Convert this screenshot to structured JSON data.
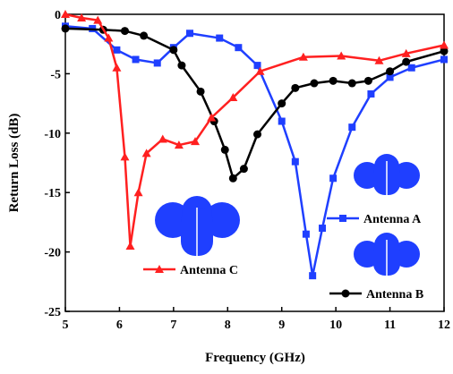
{
  "chart_data": {
    "type": "line",
    "x_label": "Frequency (GHz)",
    "y_label": "Return Loss (dB)",
    "xlim": [
      5,
      12
    ],
    "ylim": [
      -25,
      0
    ],
    "xticks": [
      5,
      6,
      7,
      8,
      9,
      10,
      11,
      12
    ],
    "yticks": [
      -25,
      -20,
      -15,
      -10,
      -5,
      0
    ],
    "series": [
      {
        "name": "Antenna A",
        "color": "#1f3fff",
        "marker": "square",
        "x": [
          5,
          5.5,
          5.95,
          6.3,
          6.7,
          7.0,
          7.3,
          7.85,
          8.2,
          8.55,
          9.0,
          9.25,
          9.45,
          9.57,
          9.75,
          9.95,
          10.3,
          10.65,
          11.0,
          11.4,
          12
        ],
        "values": [
          -1,
          -1.2,
          -3,
          -3.8,
          -4.1,
          -2.8,
          -1.6,
          -2,
          -2.8,
          -4.3,
          -9,
          -12.4,
          -18.5,
          -22,
          -18,
          -13.8,
          -9.5,
          -6.7,
          -5.3,
          -4.5,
          -3.8
        ]
      },
      {
        "name": "Antenna B",
        "color": "#000000",
        "marker": "circle",
        "x": [
          5,
          5.7,
          6.1,
          6.45,
          7.0,
          7.15,
          7.5,
          7.75,
          7.95,
          8.1,
          8.3,
          8.55,
          9.0,
          9.25,
          9.6,
          9.95,
          10.3,
          10.6,
          11.0,
          11.3,
          12
        ],
        "values": [
          -1.2,
          -1.3,
          -1.4,
          -1.8,
          -3,
          -4.3,
          -6.5,
          -9,
          -11.4,
          -13.8,
          -13,
          -10.1,
          -7.5,
          -6.2,
          -5.8,
          -5.6,
          -5.8,
          -5.6,
          -4.8,
          -4,
          -3.1
        ]
      },
      {
        "name": "Antenna C",
        "color": "#ff2020",
        "marker": "triangle",
        "x": [
          5,
          5.3,
          5.6,
          5.8,
          5.95,
          6.1,
          6.2,
          6.35,
          6.5,
          6.8,
          7.1,
          7.4,
          7.7,
          8.1,
          8.6,
          9.4,
          10.1,
          10.8,
          11.3,
          12
        ],
        "values": [
          0,
          -0.3,
          -0.5,
          -2,
          -4.5,
          -12,
          -19.5,
          -15,
          -11.7,
          -10.5,
          -11,
          -10.7,
          -8.7,
          -7,
          -4.8,
          -3.6,
          -3.5,
          -3.9,
          -3.3,
          -2.6
        ]
      }
    ]
  }
}
